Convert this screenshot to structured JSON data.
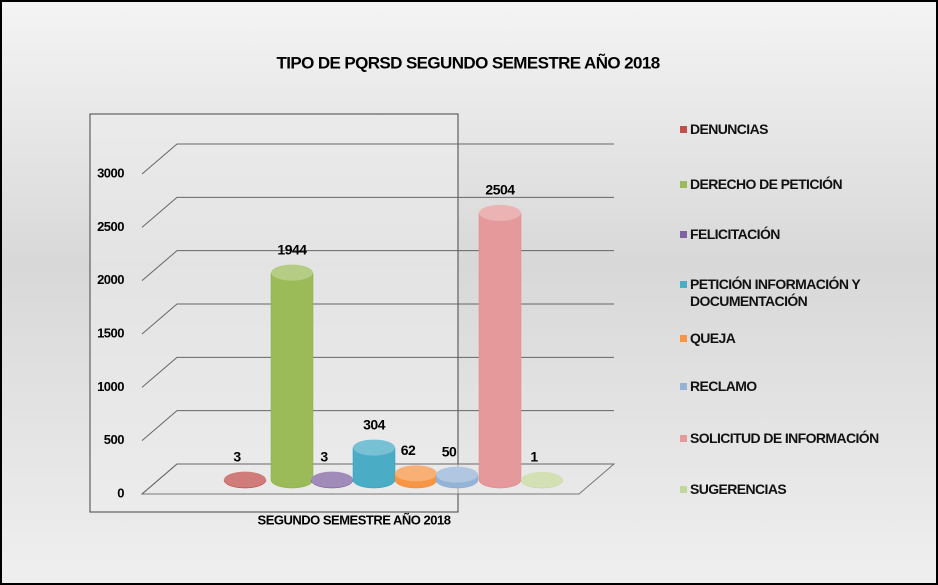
{
  "chart_data": {
    "type": "bar3d",
    "title": "TIPO DE PQRSD SEGUNDO SEMESTRE AÑO 2018",
    "categories": [
      "SEGUNDO SEMESTRE AÑO 2018"
    ],
    "series": [
      {
        "name": "DENUNCIAS",
        "color": "#c0504d",
        "values": [
          3
        ]
      },
      {
        "name": "DERECHO DE PETICIÓN",
        "color": "#9bbb59",
        "values": [
          1944
        ]
      },
      {
        "name": "FELICITACIÓN",
        "color": "#8064a2",
        "values": [
          3
        ]
      },
      {
        "name": "PETICIÓN INFORMACIÓN Y DOCUMENTACIÓN",
        "color": "#4bacc6",
        "values": [
          304
        ]
      },
      {
        "name": "QUEJA",
        "color": "#f79646",
        "values": [
          62
        ]
      },
      {
        "name": "RECLAMO",
        "color": "#95b3d7",
        "values": [
          50
        ]
      },
      {
        "name": "SOLICITUD DE INFORMACIÓN",
        "color": "#e6999b",
        "values": [
          2504
        ]
      },
      {
        "name": "SUGERENCIAS",
        "color": "#c3d69b",
        "values": [
          1
        ]
      }
    ],
    "ylim": [
      0,
      3000
    ],
    "yticks": [
      0,
      500,
      1000,
      1500,
      2000,
      2500,
      3000
    ],
    "grid": true,
    "legend": "right"
  }
}
